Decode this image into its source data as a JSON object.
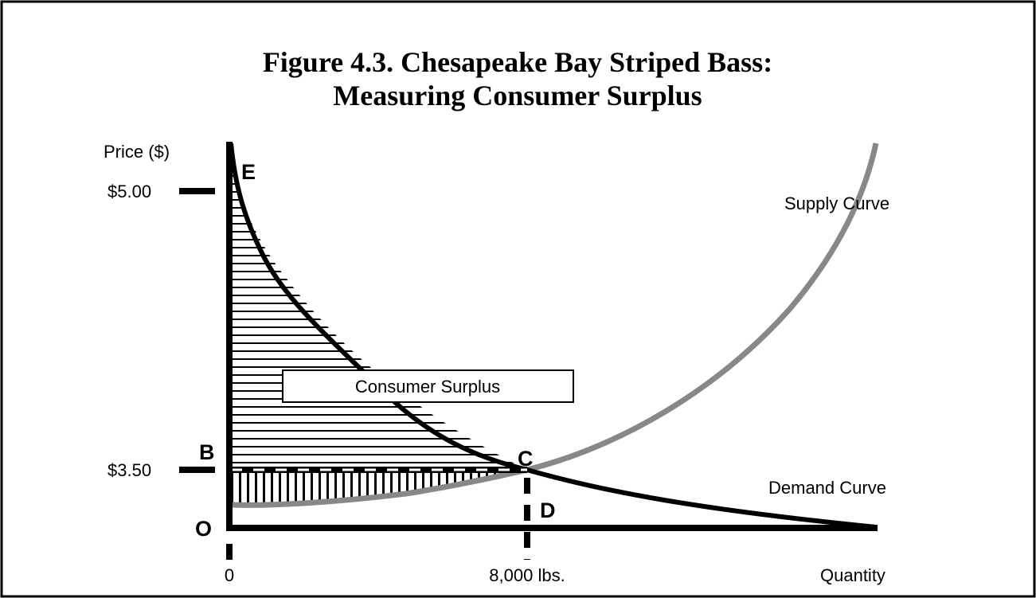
{
  "title_line1": "Figure 4.3. Chesapeake Bay Striped Bass:",
  "title_line2": "Measuring Consumer Surplus",
  "y_axis_label": "Price ($)",
  "x_axis_label": "Quantity",
  "price_high": "$5.00",
  "price_eq": "$3.50",
  "quantity_zero": "0",
  "quantity_eq": "8,000 lbs.",
  "points": {
    "E": "E",
    "B": "B",
    "C": "C",
    "D": "D",
    "O": "O"
  },
  "curves": {
    "supply": "Supply Curve",
    "demand": "Demand Curve"
  },
  "area_label": "Consumer Surplus"
}
